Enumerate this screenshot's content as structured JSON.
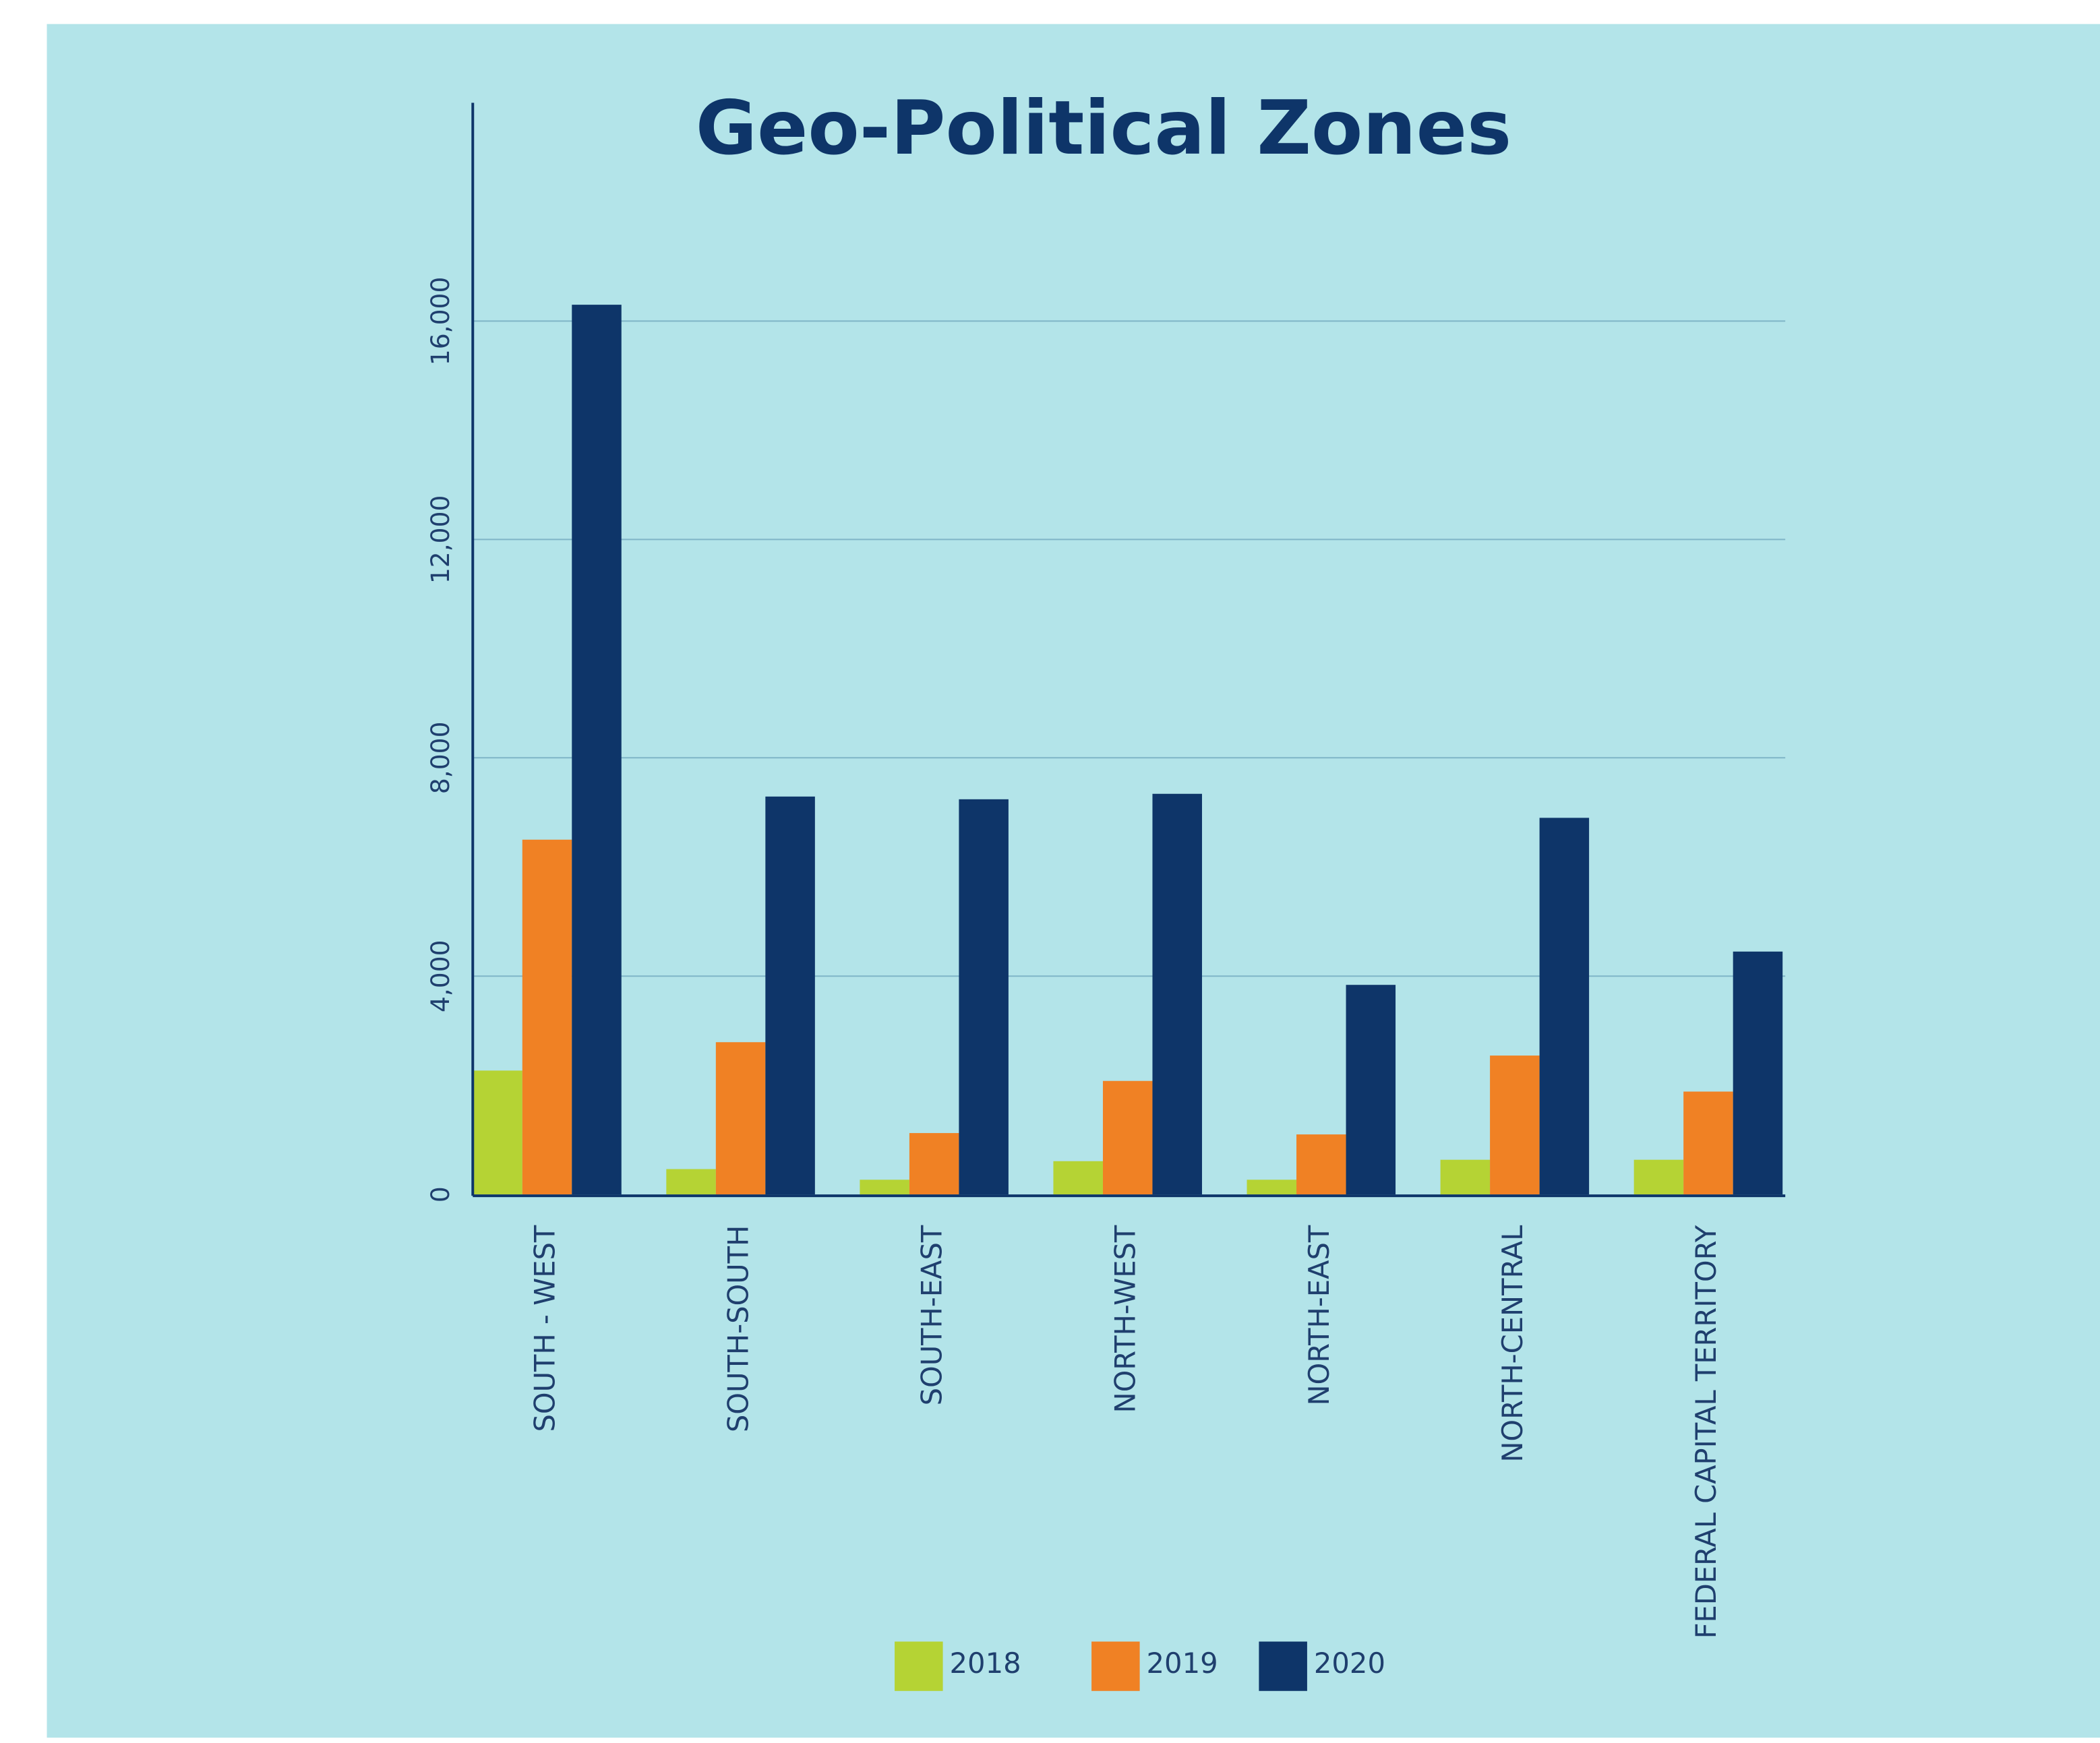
{
  "chart_data": {
    "type": "bar",
    "title": "Geo-Political Zones",
    "categories": [
      "SOUTH - WEST",
      "SOUTH-SOUTH",
      "SOUTH-EAST",
      "NORTH-WEST",
      "NORTH-EAST",
      "NORTH-CENTRAL",
      "FEDERAL CAPITAL TERRITORY"
    ],
    "series": [
      {
        "name": "2018",
        "color": "#b5d334",
        "values": [
          2270,
          465,
          270,
          610,
          270,
          636,
          636
        ]
      },
      {
        "name": "2019",
        "color": "#f08124",
        "values": [
          6500,
          2790,
          1125,
          2080,
          1100,
          2545,
          1885
        ]
      },
      {
        "name": "2020",
        "color": "#0e3569",
        "values": [
          16300,
          7290,
          7240,
          7340,
          3840,
          6900,
          4450
        ]
      }
    ],
    "ylim": [
      0,
      20000
    ],
    "yticks": [
      0,
      {
        "value": 4000,
        "label": "4,000"
      },
      {
        "value": 8000,
        "label": "8,000"
      },
      {
        "value": 12000,
        "label": "12,000"
      },
      {
        "value": 16000,
        "label": "16,000"
      }
    ],
    "grid": true,
    "legend": "bottom"
  }
}
